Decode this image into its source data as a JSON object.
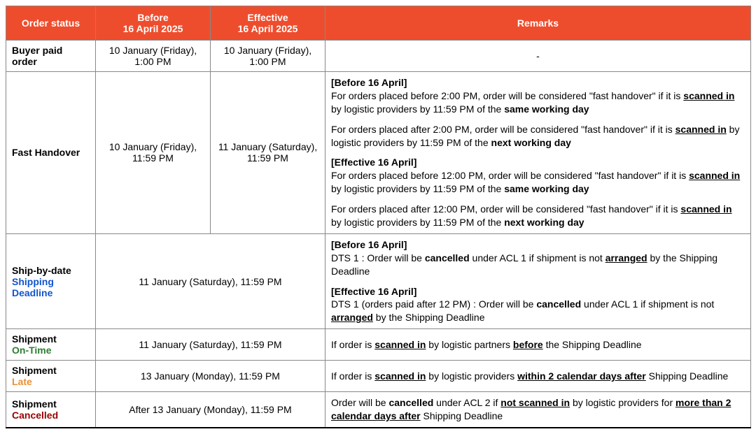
{
  "colors": {
    "header_bg": "#ee4d2d",
    "blue": "#1155cc",
    "darkgreen": "#2e7d32",
    "orange": "#e69138",
    "darkred": "#990000"
  },
  "headers": {
    "status": "Order status",
    "before_l1": "Before",
    "before_l2": "16 April 2025",
    "effective_l1": "Effective",
    "effective_l2": "16 April 2025",
    "remarks": "Remarks"
  },
  "rows": {
    "buyer_paid": {
      "status": "Buyer paid order",
      "before": "10 January (Friday), 1:00 PM",
      "effective": "10 January (Friday), 1:00 PM",
      "remarks": "-"
    },
    "fast_handover": {
      "status": "Fast Handover",
      "before": "10 January (Friday), 11:59 PM",
      "effective": "11 January (Saturday), 11:59 PM",
      "rem": {
        "h1": "[Before 16 April]",
        "p1a": "For orders placed before 2:00 PM, order will be considered \"fast handover\" if it is ",
        "p1b": "scanned in",
        "p1c": " by logistic providers by 11:59 PM of the ",
        "p1d": "same working day",
        "p2a": "For orders placed after 2:00 PM, order will be considered \"fast handover\" if it is ",
        "p2b": "scanned in",
        "p2c": " by logistic providers by 11:59 PM of the ",
        "p2d": "next working day",
        "h2": "[Effective 16 April]",
        "p3a": "For orders placed before 12:00 PM, order will be considered \"fast handover\" if it is ",
        "p3b": "scanned in",
        "p3c": " by logistic providers by 11:59 PM of the ",
        "p3d": "same working day",
        "p4a": "For orders placed after 12:00 PM, order will be considered \"fast handover\" if it is ",
        "p4b": "scanned in",
        "p4c": " by logistic providers by 11:59 PM of the ",
        "p4d": "next working day"
      }
    },
    "ship_by": {
      "status_main": "Ship-by-date",
      "status_sub": "Shipping Deadline",
      "merged": "11 January (Saturday), 11:59 PM",
      "rem": {
        "h1": "[Before 16 April]",
        "p1a": "DTS 1 : Order will be ",
        "p1b": "cancelled",
        "p1c": " under ACL 1 if shipment is not ",
        "p1d": "arranged",
        "p1e": " by the Shipping Deadline",
        "h2": "[Effective 16 April]",
        "p2a": "DTS 1 (orders paid after 12 PM) : Order will be ",
        "p2b": "cancelled",
        "p2c": " under ACL 1 if shipment is not ",
        "p2d": "arranged",
        "p2e": " by the Shipping Deadline"
      }
    },
    "on_time": {
      "status_main": "Shipment",
      "status_sub": "On-Time",
      "merged": "11 January (Saturday), 11:59 PM",
      "rem_a": "If order is ",
      "rem_b": "scanned in",
      "rem_c": " by logistic partners ",
      "rem_d": "before",
      "rem_e": " the Shipping Deadline"
    },
    "late": {
      "status_main": "Shipment",
      "status_sub": "Late",
      "merged": "13 January (Monday), 11:59 PM",
      "rem_a": "If order is ",
      "rem_b": "scanned in",
      "rem_c": " by logistic providers ",
      "rem_d": "within 2 calendar days after",
      "rem_e": " Shipping Deadline"
    },
    "cancelled": {
      "status_main": "Shipment",
      "status_sub": "Cancelled",
      "merged": "After 13 January (Monday), 11:59 PM",
      "rem_a": "Order will be ",
      "rem_b": "cancelled",
      "rem_c": " under ACL 2 if ",
      "rem_d": "not scanned in",
      "rem_e": " by logistic providers for ",
      "rem_f": "more than 2 calendar days after",
      "rem_g": " Shipping Deadline"
    }
  }
}
